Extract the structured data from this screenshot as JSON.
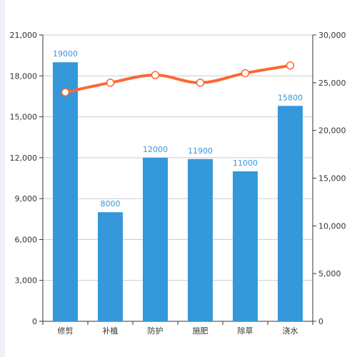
{
  "chart_data": {
    "type": "bar",
    "categories": [
      "修剪",
      "补植",
      "防护",
      "施肥",
      "除草",
      "浇水"
    ],
    "series": [
      {
        "type": "bar",
        "axis": "left",
        "color": "#3498db",
        "values": [
          19000,
          8000,
          12000,
          11900,
          11000,
          15800
        ],
        "data_labels": [
          "19000",
          "8000",
          "12000",
          "11900",
          "11000",
          "15800"
        ]
      },
      {
        "type": "line",
        "axis": "right",
        "color": "#ff6633",
        "smooth": true,
        "marker": "hollow-circle",
        "values": [
          24000,
          25000,
          25800,
          25000,
          26000,
          26800
        ]
      }
    ],
    "y_left": {
      "min": 0,
      "max": 21000,
      "ticks": [
        "0",
        "3,000",
        "6,000",
        "9,000",
        "12,000",
        "15,000",
        "18,000",
        "21,000"
      ],
      "tick_values": [
        0,
        3000,
        6000,
        9000,
        12000,
        15000,
        18000,
        21000
      ]
    },
    "y_right": {
      "min": 0,
      "max": 30000,
      "ticks": [
        "0",
        "5,000",
        "10,000",
        "15,000",
        "20,000",
        "25,000",
        "30,000"
      ],
      "tick_values": [
        0,
        5000,
        10000,
        15000,
        20000,
        25000,
        30000
      ]
    },
    "grid": true,
    "legend": "none"
  }
}
